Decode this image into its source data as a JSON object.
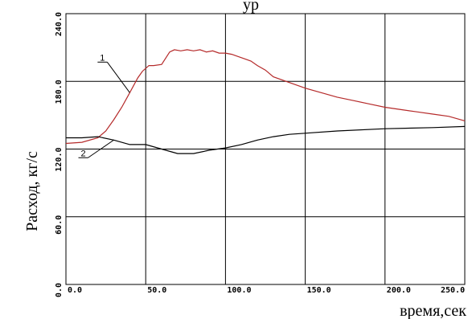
{
  "chart_data": {
    "type": "line",
    "title_fragment": "ур",
    "xlabel": "время,сек",
    "ylabel": "Расход, кг/с",
    "xlim": [
      0,
      250
    ],
    "ylim": [
      0,
      240
    ],
    "x_ticks": [
      "0.0",
      "50.0",
      "100.0",
      "150.0",
      "200.0",
      "250.0"
    ],
    "y_ticks": [
      "0.0",
      "60.0",
      "120.0",
      "180.0",
      "240.0"
    ],
    "grid": true,
    "series": [
      {
        "name": "1",
        "color": "#b52a2a",
        "x": [
          0,
          10,
          20,
          25,
          30,
          35,
          40,
          45,
          48,
          52,
          55,
          60,
          65,
          68,
          72,
          76,
          80,
          84,
          88,
          92,
          96,
          100,
          104,
          108,
          112,
          116,
          120,
          125,
          130,
          140,
          150,
          160,
          170,
          180,
          190,
          200,
          210,
          220,
          230,
          240,
          250
        ],
        "values": [
          125,
          126,
          130,
          136,
          146,
          157,
          170,
          183,
          189,
          194,
          194,
          195,
          206,
          208,
          207,
          208,
          207,
          208,
          206,
          207,
          205,
          205,
          204,
          202,
          200,
          198,
          194,
          190,
          184,
          179,
          174,
          170,
          166,
          163,
          160,
          157,
          155,
          153,
          151,
          149,
          145
        ]
      },
      {
        "name": "2",
        "color": "#000000",
        "x": [
          0,
          10,
          20,
          30,
          40,
          50,
          60,
          70,
          80,
          90,
          100,
          110,
          120,
          130,
          140,
          150,
          170,
          200,
          230,
          250
        ],
        "values": [
          130,
          130,
          131,
          128,
          124,
          124,
          120,
          116,
          116,
          119,
          121,
          124,
          128,
          131,
          133,
          134,
          136,
          138,
          139,
          140
        ]
      }
    ],
    "callouts": [
      {
        "text": "1",
        "series": "1",
        "x": 40
      },
      {
        "text": "2",
        "series": "2",
        "x": 30
      }
    ]
  }
}
